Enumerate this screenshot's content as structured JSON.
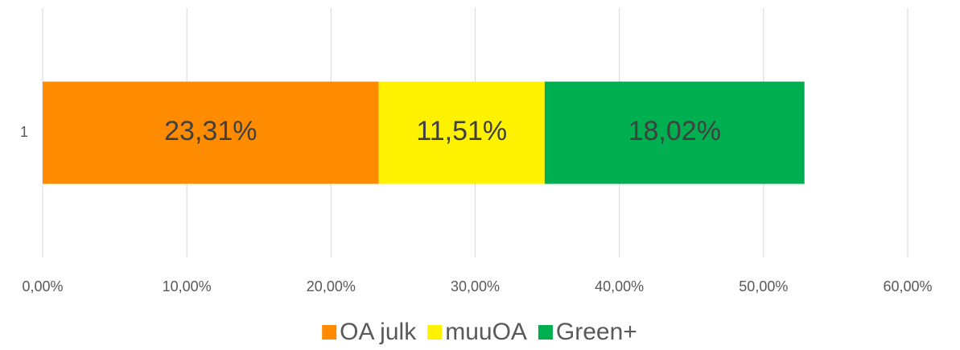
{
  "chart_data": {
    "type": "bar",
    "orientation": "horizontal",
    "stacked": true,
    "categories": [
      "1"
    ],
    "series": [
      {
        "name": "OA julk",
        "color": "#ff8c00",
        "values": [
          23.31
        ],
        "value_labels": [
          "23,31%"
        ]
      },
      {
        "name": "muuOA",
        "color": "#fff200",
        "values": [
          11.51
        ],
        "value_labels": [
          "11,51%"
        ]
      },
      {
        "name": "Green+",
        "color": "#00b050",
        "values": [
          18.02
        ],
        "value_labels": [
          "18,02%"
        ]
      }
    ],
    "xlim": [
      0,
      60
    ],
    "xticks": [
      {
        "value": 0,
        "label": "0,00%"
      },
      {
        "value": 10,
        "label": "10,00%"
      },
      {
        "value": 20,
        "label": "20,00%"
      },
      {
        "value": 30,
        "label": "30,00%"
      },
      {
        "value": 40,
        "label": "40,00%"
      },
      {
        "value": 50,
        "label": "50,00%"
      },
      {
        "value": 60,
        "label": "60,00%"
      }
    ],
    "grid": true,
    "legend": "bottom"
  }
}
